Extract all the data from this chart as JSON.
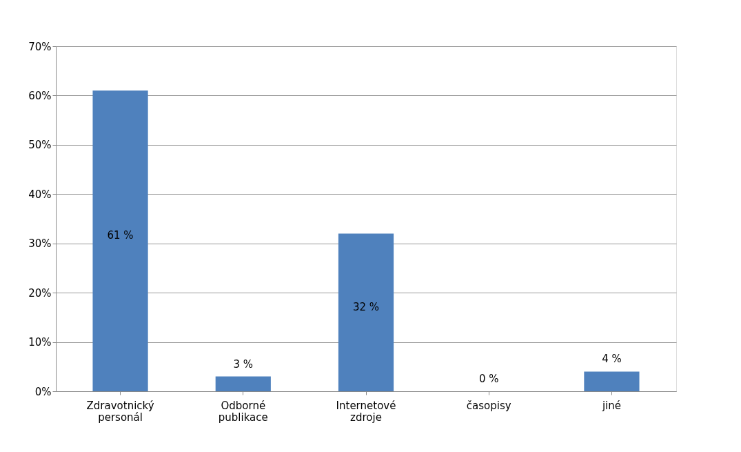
{
  "chart_data": {
    "type": "bar",
    "categories": [
      "Zdravotnický personál",
      "Odborné publikace",
      "Internetové zdroje",
      "časopisy",
      "jiné"
    ],
    "values": [
      61,
      3,
      32,
      0,
      4
    ],
    "value_labels": [
      "61 %",
      "3 %",
      "32 %",
      "0 %",
      "4 %"
    ],
    "color": "#4f81bd",
    "ylim": [
      0,
      70
    ],
    "yticks": [
      {
        "value": 0,
        "label": "0%"
      },
      {
        "value": 10,
        "label": "10%"
      },
      {
        "value": 20,
        "label": "20%"
      },
      {
        "value": 30,
        "label": "30%"
      },
      {
        "value": 40,
        "label": "40%"
      },
      {
        "value": 50,
        "label": "50%"
      },
      {
        "value": 60,
        "label": "60%"
      },
      {
        "value": 70,
        "label": "70%"
      }
    ],
    "grid": "y"
  }
}
